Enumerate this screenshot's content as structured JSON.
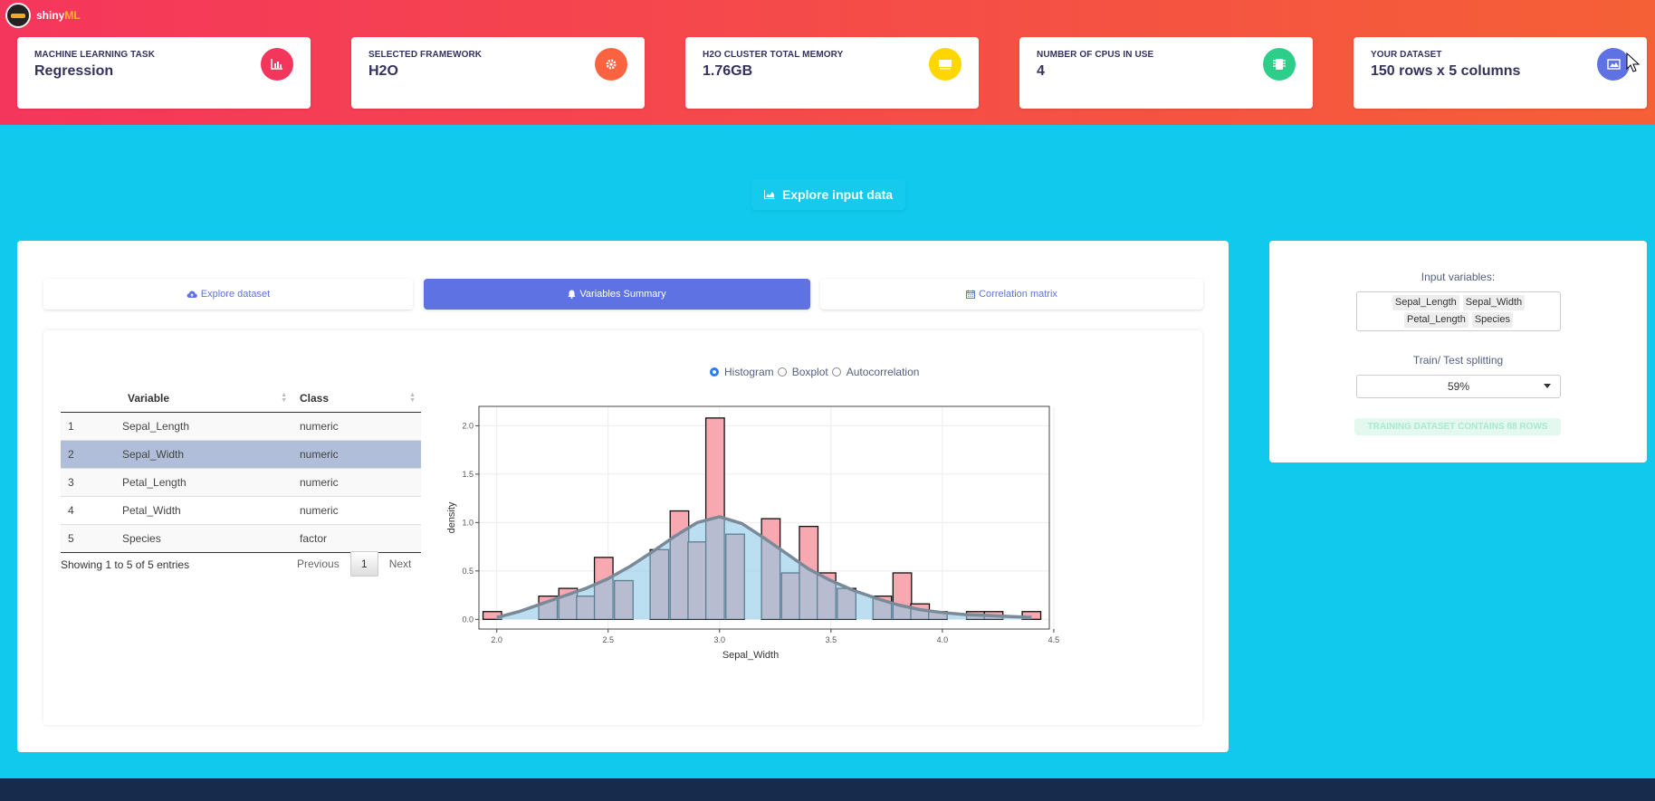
{
  "app": {
    "name_prefix": "shiny",
    "name_suffix": "ML"
  },
  "stats": [
    {
      "label": "MACHINE LEARNING TASK",
      "value": "Regression",
      "icon": "chart-bar-icon",
      "color": "#f5365c"
    },
    {
      "label": "SELECTED FRAMEWORK",
      "value": "H2O",
      "icon": "gear-icon",
      "color": "#fb6340"
    },
    {
      "label": "H2O CLUSTER TOTAL MEMORY",
      "value": "1.76GB",
      "icon": "memory-icon",
      "color": "#ffd600"
    },
    {
      "label": "NUMBER OF CPUS IN USE",
      "value": "4",
      "icon": "cpu-icon",
      "color": "#2dce89"
    },
    {
      "label": "YOUR DATASET",
      "value": "150 rows x 5 columns",
      "icon": "image-icon",
      "color": "#5e72e4"
    }
  ],
  "explore_button": {
    "label": "Explore input data",
    "icon": "area-chart-icon"
  },
  "tabs": [
    {
      "label": "Explore dataset",
      "icon": "cloud-upload-icon"
    },
    {
      "label": "Variables Summary",
      "icon": "bell-icon"
    },
    {
      "label": "Correlation matrix",
      "icon": "calendar-icon"
    }
  ],
  "table": {
    "headers": [
      "",
      "Variable",
      "Class"
    ],
    "rows": [
      [
        "1",
        "Sepal_Length",
        "numeric"
      ],
      [
        "2",
        "Sepal_Width",
        "numeric"
      ],
      [
        "3",
        "Petal_Length",
        "numeric"
      ],
      [
        "4",
        "Petal_Width",
        "numeric"
      ],
      [
        "5",
        "Species",
        "factor"
      ]
    ],
    "info": "Showing 1 to 5 of 5 entries",
    "previous": "Previous",
    "page": "1",
    "next": "Next"
  },
  "plot_options": {
    "options": [
      "Histogram",
      "Boxplot",
      "Autocorrelation"
    ],
    "selected": "Histogram"
  },
  "chart_data": {
    "type": "bar",
    "title": "",
    "xlabel": "Sepal_Width",
    "ylabel": "density",
    "xlim": [
      1.92,
      4.48
    ],
    "ylim": [
      -0.1,
      2.2
    ],
    "xticks": [
      2.0,
      2.5,
      3.0,
      3.5,
      4.0,
      4.5
    ],
    "xtick_labels": [
      "2.0",
      "2.5",
      "3.0",
      "3.5",
      "4.0",
      "4.5"
    ],
    "yticks": [
      0.0,
      0.5,
      1.0,
      1.5,
      2.0
    ],
    "ytick_labels": [
      "0.0",
      "0.5",
      "1.0",
      "1.5",
      "2.0"
    ],
    "bin_width": 0.0833,
    "series": [
      {
        "name": "histogram",
        "color": "#f8a8b0",
        "bin_centers": [
          1.98,
          2.23,
          2.32,
          2.4,
          2.48,
          2.57,
          2.73,
          2.82,
          2.9,
          2.98,
          3.07,
          3.23,
          3.32,
          3.4,
          3.48,
          3.57,
          3.73,
          3.82,
          3.9,
          3.98,
          4.15,
          4.23,
          4.4
        ],
        "values": [
          0.08,
          0.24,
          0.32,
          0.24,
          0.64,
          0.4,
          0.72,
          1.12,
          0.8,
          2.08,
          0.88,
          1.04,
          0.48,
          0.96,
          0.48,
          0.32,
          0.24,
          0.48,
          0.16,
          0.08,
          0.08,
          0.08,
          0.08
        ]
      },
      {
        "name": "density",
        "color": "#8ec9e8",
        "x": [
          2.0,
          2.1,
          2.2,
          2.3,
          2.4,
          2.5,
          2.6,
          2.7,
          2.8,
          2.9,
          3.0,
          3.1,
          3.2,
          3.3,
          3.4,
          3.5,
          3.6,
          3.7,
          3.8,
          3.9,
          4.0,
          4.1,
          4.2,
          4.3,
          4.4
        ],
        "values": [
          0.02,
          0.08,
          0.16,
          0.24,
          0.32,
          0.42,
          0.55,
          0.7,
          0.86,
          1.0,
          1.06,
          0.99,
          0.84,
          0.68,
          0.52,
          0.4,
          0.3,
          0.22,
          0.15,
          0.1,
          0.07,
          0.05,
          0.04,
          0.03,
          0.02
        ]
      }
    ]
  },
  "side": {
    "input_label": "Input variables:",
    "inputs": [
      "Sepal_Length",
      "Sepal_Width",
      "Petal_Length",
      "Species"
    ],
    "split_label": "Train/ Test splitting",
    "split_value": "59%",
    "train_info": "TRAINING DATASET CONTAINS 88 ROWS"
  }
}
